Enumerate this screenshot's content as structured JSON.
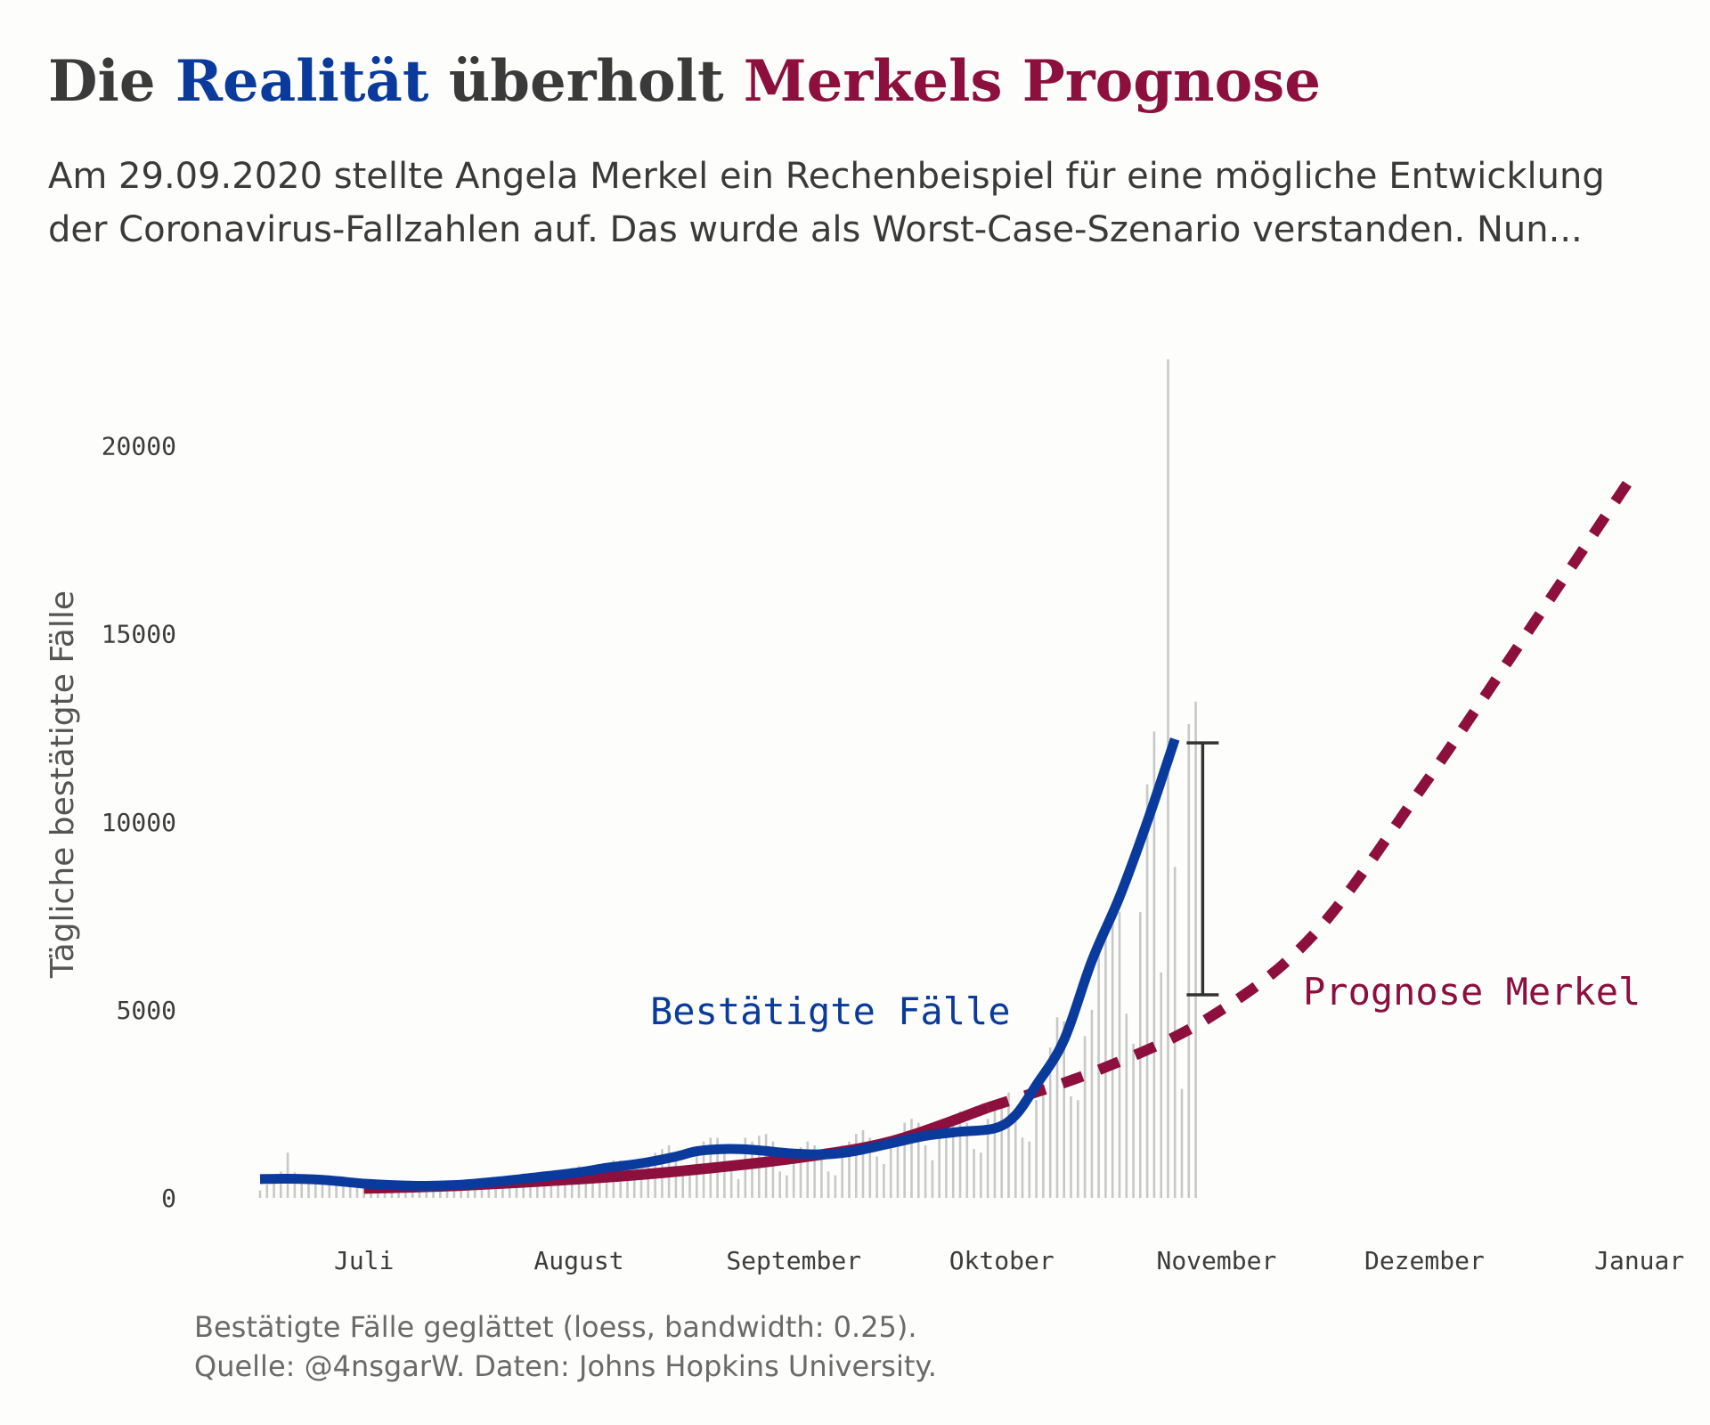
{
  "header": {
    "title_parts": [
      {
        "text": "Die ",
        "color": "#3a3a3a"
      },
      {
        "text": "Realität",
        "color": "#0a3b9c"
      },
      {
        "text": " überholt ",
        "color": "#3a3a3a"
      },
      {
        "text": "Merkels Prognose",
        "color": "#8c0f3e"
      }
    ],
    "subtitle_lines": [
      "Am 29.09.2020 stellte Angela Merkel ein Rechenbeispiel für eine mögliche Entwicklung",
      "der Coronavirus-Fallzahlen auf. Das wurde als Worst-Case-Szenario verstanden. Nun..."
    ]
  },
  "footer": {
    "caption_lines": [
      "Bestätigte Fälle geglättet (loess, bandwidth: 0.25).",
      "Quelle: @4nsgarW. Daten: Johns Hopkins University."
    ]
  },
  "chart_data": {
    "type": "line",
    "ylabel": "Tägliche bestätigte Fälle",
    "xlabel": "",
    "ylim": [
      0,
      22500
    ],
    "xlim": [
      "2020-06-16",
      "2021-01-04"
    ],
    "y_ticks": [
      0,
      5000,
      10000,
      15000,
      20000
    ],
    "x_ticks": [
      {
        "date": "2020-07-01",
        "label": "Juli"
      },
      {
        "date": "2020-08-01",
        "label": "August"
      },
      {
        "date": "2020-09-01",
        "label": "September"
      },
      {
        "date": "2020-10-01",
        "label": "Oktober"
      },
      {
        "date": "2020-11-01",
        "label": "November"
      },
      {
        "date": "2020-12-01",
        "label": "Dezember"
      },
      {
        "date": "2021-01-01",
        "label": "Januar"
      }
    ],
    "grid": false,
    "legend": "none",
    "colors": {
      "confirmed": "#0a3b9c",
      "forecast": "#8c0f3e",
      "bars": "#c8c8c8",
      "error_bar": "#333333"
    },
    "series": [
      {
        "name": "Bestätigte Fälle",
        "kind": "smoothed",
        "points": [
          [
            "2020-06-16",
            500
          ],
          [
            "2020-06-20",
            510
          ],
          [
            "2020-06-25",
            480
          ],
          [
            "2020-07-01",
            380
          ],
          [
            "2020-07-05",
            340
          ],
          [
            "2020-07-10",
            320
          ],
          [
            "2020-07-15",
            350
          ],
          [
            "2020-07-20",
            430
          ],
          [
            "2020-07-25",
            530
          ],
          [
            "2020-08-01",
            680
          ],
          [
            "2020-08-05",
            800
          ],
          [
            "2020-08-10",
            920
          ],
          [
            "2020-08-15",
            1100
          ],
          [
            "2020-08-18",
            1240
          ],
          [
            "2020-08-22",
            1300
          ],
          [
            "2020-08-26",
            1280
          ],
          [
            "2020-09-01",
            1180
          ],
          [
            "2020-09-06",
            1160
          ],
          [
            "2020-09-10",
            1250
          ],
          [
            "2020-09-15",
            1450
          ],
          [
            "2020-09-20",
            1650
          ],
          [
            "2020-09-25",
            1760
          ],
          [
            "2020-09-30",
            1850
          ],
          [
            "2020-10-03",
            2200
          ],
          [
            "2020-10-06",
            3000
          ],
          [
            "2020-10-10",
            4200
          ],
          [
            "2020-10-14",
            6300
          ],
          [
            "2020-10-18",
            8000
          ],
          [
            "2020-10-22",
            10000
          ],
          [
            "2020-10-26",
            12200
          ]
        ]
      },
      {
        "name": "Prognose Merkel",
        "kind": "forecast",
        "points": [
          [
            "2020-07-01",
            250
          ],
          [
            "2020-07-15",
            330
          ],
          [
            "2020-08-01",
            500
          ],
          [
            "2020-08-15",
            700
          ],
          [
            "2020-09-01",
            1050
          ],
          [
            "2020-09-15",
            1500
          ],
          [
            "2020-09-29",
            2400
          ],
          [
            "2020-10-15",
            3400
          ],
          [
            "2020-10-31",
            4800
          ],
          [
            "2020-11-15",
            7000
          ],
          [
            "2020-12-01",
            11000
          ],
          [
            "2020-12-15",
            14800
          ],
          [
            "2020-12-31",
            19200
          ]
        ]
      }
    ],
    "daily_cases": [
      {
        "date": "2020-06-16",
        "value": 200
      },
      {
        "date": "2020-06-17",
        "value": 350
      },
      {
        "date": "2020-06-18",
        "value": 550
      },
      {
        "date": "2020-06-19",
        "value": 700
      },
      {
        "date": "2020-06-20",
        "value": 1200
      },
      {
        "date": "2020-06-21",
        "value": 680
      },
      {
        "date": "2020-06-22",
        "value": 500
      },
      {
        "date": "2020-06-23",
        "value": 450
      },
      {
        "date": "2020-06-24",
        "value": 500
      },
      {
        "date": "2020-06-25",
        "value": 560
      },
      {
        "date": "2020-06-26",
        "value": 600
      },
      {
        "date": "2020-06-27",
        "value": 550
      },
      {
        "date": "2020-06-28",
        "value": 400
      },
      {
        "date": "2020-06-29",
        "value": 300
      },
      {
        "date": "2020-06-30",
        "value": 350
      },
      {
        "date": "2020-07-01",
        "value": 400
      },
      {
        "date": "2020-07-02",
        "value": 450
      },
      {
        "date": "2020-07-03",
        "value": 420
      },
      {
        "date": "2020-07-04",
        "value": 380
      },
      {
        "date": "2020-07-05",
        "value": 250
      },
      {
        "date": "2020-07-06",
        "value": 200
      },
      {
        "date": "2020-07-07",
        "value": 350
      },
      {
        "date": "2020-07-08",
        "value": 400
      },
      {
        "date": "2020-07-09",
        "value": 420
      },
      {
        "date": "2020-07-10",
        "value": 400
      },
      {
        "date": "2020-07-11",
        "value": 380
      },
      {
        "date": "2020-07-12",
        "value": 250
      },
      {
        "date": "2020-07-13",
        "value": 200
      },
      {
        "date": "2020-07-14",
        "value": 380
      },
      {
        "date": "2020-07-15",
        "value": 420
      },
      {
        "date": "2020-07-16",
        "value": 450
      },
      {
        "date": "2020-07-17",
        "value": 500
      },
      {
        "date": "2020-07-18",
        "value": 480
      },
      {
        "date": "2020-07-19",
        "value": 300
      },
      {
        "date": "2020-07-20",
        "value": 250
      },
      {
        "date": "2020-07-21",
        "value": 500
      },
      {
        "date": "2020-07-22",
        "value": 550
      },
      {
        "date": "2020-07-23",
        "value": 600
      },
      {
        "date": "2020-07-24",
        "value": 650
      },
      {
        "date": "2020-07-25",
        "value": 600
      },
      {
        "date": "2020-07-26",
        "value": 400
      },
      {
        "date": "2020-07-27",
        "value": 350
      },
      {
        "date": "2020-07-28",
        "value": 650
      },
      {
        "date": "2020-07-29",
        "value": 700
      },
      {
        "date": "2020-07-30",
        "value": 750
      },
      {
        "date": "2020-07-31",
        "value": 800
      },
      {
        "date": "2020-08-01",
        "value": 850
      },
      {
        "date": "2020-08-02",
        "value": 500
      },
      {
        "date": "2020-08-03",
        "value": 450
      },
      {
        "date": "2020-08-04",
        "value": 850
      },
      {
        "date": "2020-08-05",
        "value": 900
      },
      {
        "date": "2020-08-06",
        "value": 1000
      },
      {
        "date": "2020-08-07",
        "value": 1000
      },
      {
        "date": "2020-08-08",
        "value": 900
      },
      {
        "date": "2020-08-09",
        "value": 550
      },
      {
        "date": "2020-08-10",
        "value": 500
      },
      {
        "date": "2020-08-11",
        "value": 1000
      },
      {
        "date": "2020-08-12",
        "value": 1200
      },
      {
        "date": "2020-08-13",
        "value": 1300
      },
      {
        "date": "2020-08-14",
        "value": 1400
      },
      {
        "date": "2020-08-15",
        "value": 1200
      },
      {
        "date": "2020-08-16",
        "value": 700
      },
      {
        "date": "2020-08-17",
        "value": 600
      },
      {
        "date": "2020-08-18",
        "value": 1300
      },
      {
        "date": "2020-08-19",
        "value": 1500
      },
      {
        "date": "2020-08-20",
        "value": 1600
      },
      {
        "date": "2020-08-21",
        "value": 1600
      },
      {
        "date": "2020-08-22",
        "value": 1400
      },
      {
        "date": "2020-08-23",
        "value": 800
      },
      {
        "date": "2020-08-24",
        "value": 500
      },
      {
        "date": "2020-08-25",
        "value": 1600
      },
      {
        "date": "2020-08-26",
        "value": 1500
      },
      {
        "date": "2020-08-27",
        "value": 1650
      },
      {
        "date": "2020-08-28",
        "value": 1700
      },
      {
        "date": "2020-08-29",
        "value": 1500
      },
      {
        "date": "2020-08-30",
        "value": 700
      },
      {
        "date": "2020-08-31",
        "value": 600
      },
      {
        "date": "2020-09-01",
        "value": 1300
      },
      {
        "date": "2020-09-02",
        "value": 1350
      },
      {
        "date": "2020-09-03",
        "value": 1500
      },
      {
        "date": "2020-09-04",
        "value": 1400
      },
      {
        "date": "2020-09-05",
        "value": 1200
      },
      {
        "date": "2020-09-06",
        "value": 700
      },
      {
        "date": "2020-09-07",
        "value": 600
      },
      {
        "date": "2020-09-08",
        "value": 1400
      },
      {
        "date": "2020-09-09",
        "value": 1500
      },
      {
        "date": "2020-09-10",
        "value": 1700
      },
      {
        "date": "2020-09-11",
        "value": 1800
      },
      {
        "date": "2020-09-12",
        "value": 1600
      },
      {
        "date": "2020-09-13",
        "value": 1100
      },
      {
        "date": "2020-09-14",
        "value": 900
      },
      {
        "date": "2020-09-15",
        "value": 1500
      },
      {
        "date": "2020-09-16",
        "value": 1700
      },
      {
        "date": "2020-09-17",
        "value": 2000
      },
      {
        "date": "2020-09-18",
        "value": 2100
      },
      {
        "date": "2020-09-19",
        "value": 2000
      },
      {
        "date": "2020-09-20",
        "value": 1400
      },
      {
        "date": "2020-09-21",
        "value": 1000
      },
      {
        "date": "2020-09-22",
        "value": 1800
      },
      {
        "date": "2020-09-23",
        "value": 2000
      },
      {
        "date": "2020-09-24",
        "value": 2200
      },
      {
        "date": "2020-09-25",
        "value": 2300
      },
      {
        "date": "2020-09-26",
        "value": 2000
      },
      {
        "date": "2020-09-27",
        "value": 1300
      },
      {
        "date": "2020-09-28",
        "value": 1200
      },
      {
        "date": "2020-09-29",
        "value": 2100
      },
      {
        "date": "2020-09-30",
        "value": 2400
      },
      {
        "date": "2020-10-01",
        "value": 2500
      },
      {
        "date": "2020-10-02",
        "value": 2800
      },
      {
        "date": "2020-10-03",
        "value": 2200
      },
      {
        "date": "2020-10-04",
        "value": 1600
      },
      {
        "date": "2020-10-05",
        "value": 1500
      },
      {
        "date": "2020-10-06",
        "value": 2600
      },
      {
        "date": "2020-10-07",
        "value": 3000
      },
      {
        "date": "2020-10-08",
        "value": 4000
      },
      {
        "date": "2020-10-09",
        "value": 4800
      },
      {
        "date": "2020-10-10",
        "value": 4700
      },
      {
        "date": "2020-10-11",
        "value": 2700
      },
      {
        "date": "2020-10-12",
        "value": 2600
      },
      {
        "date": "2020-10-13",
        "value": 4300
      },
      {
        "date": "2020-10-14",
        "value": 5000
      },
      {
        "date": "2020-10-15",
        "value": 6600
      },
      {
        "date": "2020-10-16",
        "value": 7300
      },
      {
        "date": "2020-10-17",
        "value": 7800
      },
      {
        "date": "2020-10-18",
        "value": 7600
      },
      {
        "date": "2020-10-19",
        "value": 4900
      },
      {
        "date": "2020-10-20",
        "value": 4100
      },
      {
        "date": "2020-10-21",
        "value": 7600
      },
      {
        "date": "2020-10-22",
        "value": 11000
      },
      {
        "date": "2020-10-23",
        "value": 12400
      },
      {
        "date": "2020-10-24",
        "value": 6000
      },
      {
        "date": "2020-10-25",
        "value": 22300
      },
      {
        "date": "2020-10-26",
        "value": 8800
      },
      {
        "date": "2020-10-27",
        "value": 2900
      },
      {
        "date": "2020-10-28",
        "value": 12600
      },
      {
        "date": "2020-10-29",
        "value": 13200
      }
    ],
    "annotations": [
      {
        "type": "error_bar",
        "date": "2020-10-30",
        "y_low": 5400,
        "y_high": 12100
      },
      {
        "type": "series_label",
        "text": "Bestätigte Fälle",
        "series": "Bestätigte Fälle"
      },
      {
        "type": "series_label",
        "text": "Prognose Merkel",
        "series": "Prognose Merkel"
      }
    ]
  }
}
